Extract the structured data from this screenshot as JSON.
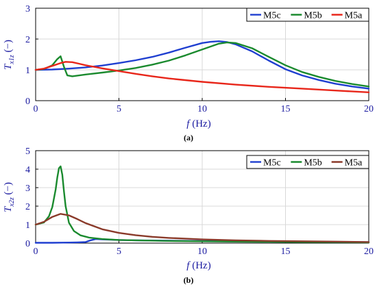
{
  "chart_data": [
    {
      "type": "line",
      "panel_label": "(a)",
      "ylabel_main": "T",
      "ylabel_sub": "x1z",
      "ylabel_unit": "(−)",
      "xlabel_main": "f",
      "xlabel_unit": "(Hz)",
      "xlim": [
        0,
        20
      ],
      "ylim": [
        0,
        3
      ],
      "xticks": [
        0,
        5,
        10,
        15,
        20
      ],
      "yticks": [
        0,
        1,
        2,
        3
      ],
      "grid": true,
      "legend_position": "top-right",
      "series": [
        {
          "name": "M5c",
          "color": "#1f3fd0",
          "x": [
            0,
            1,
            2,
            3,
            4,
            5,
            6,
            7,
            8,
            9,
            10,
            10.5,
            11,
            11.5,
            12,
            13,
            14,
            15,
            16,
            17,
            18,
            19,
            20
          ],
          "y": [
            1.0,
            1.01,
            1.04,
            1.08,
            1.14,
            1.22,
            1.31,
            1.42,
            1.56,
            1.72,
            1.87,
            1.91,
            1.93,
            1.9,
            1.83,
            1.6,
            1.3,
            1.02,
            0.82,
            0.67,
            0.55,
            0.46,
            0.39
          ]
        },
        {
          "name": "M5b",
          "color": "#1a8a2e",
          "x": [
            0,
            0.5,
            1.0,
            1.3,
            1.5,
            1.7,
            1.9,
            2.2,
            3,
            4,
            5,
            6,
            7,
            8,
            9,
            10,
            11,
            11.5,
            12,
            13,
            14,
            15,
            16,
            17,
            18,
            19,
            20
          ],
          "y": [
            1.0,
            1.03,
            1.15,
            1.35,
            1.44,
            1.1,
            0.82,
            0.79,
            0.85,
            0.91,
            0.98,
            1.06,
            1.17,
            1.3,
            1.47,
            1.66,
            1.85,
            1.89,
            1.87,
            1.7,
            1.42,
            1.15,
            0.93,
            0.77,
            0.64,
            0.54,
            0.46
          ]
        },
        {
          "name": "M5a",
          "color": "#e8261a",
          "x": [
            0,
            0.5,
            1.0,
            1.5,
            1.8,
            2.2,
            2.6,
            3,
            4,
            5,
            6,
            7,
            8,
            10,
            12,
            14,
            16,
            18,
            20
          ],
          "y": [
            1.0,
            1.04,
            1.13,
            1.22,
            1.26,
            1.25,
            1.2,
            1.15,
            1.05,
            0.96,
            0.87,
            0.79,
            0.72,
            0.61,
            0.52,
            0.45,
            0.39,
            0.33,
            0.27
          ]
        }
      ]
    },
    {
      "type": "line",
      "panel_label": "(b)",
      "ylabel_main": "T",
      "ylabel_sub": "x2z",
      "ylabel_unit": "(−)",
      "xlabel_main": "f",
      "xlabel_unit": "(Hz)",
      "xlim": [
        0,
        20
      ],
      "ylim": [
        0,
        5
      ],
      "xticks": [
        0,
        5,
        10,
        15,
        20
      ],
      "yticks": [
        0,
        1,
        2,
        3,
        4,
        5
      ],
      "grid": true,
      "legend_position": "top-right",
      "series": [
        {
          "name": "M5c",
          "color": "#1f3fd0",
          "x": [
            0,
            1,
            2,
            2.5,
            3,
            3.3,
            3.6,
            4,
            5,
            6,
            8,
            10,
            12,
            14,
            16,
            18,
            20
          ],
          "y": [
            0.02,
            0.02,
            0.03,
            0.04,
            0.06,
            0.15,
            0.22,
            0.2,
            0.17,
            0.15,
            0.13,
            0.11,
            0.09,
            0.08,
            0.07,
            0.06,
            0.05
          ]
        },
        {
          "name": "M5b",
          "color": "#1a8a2e",
          "x": [
            0,
            0.5,
            0.8,
            1.0,
            1.2,
            1.3,
            1.4,
            1.5,
            1.6,
            1.7,
            1.8,
            2.0,
            2.3,
            2.7,
            3.2,
            4,
            5,
            6,
            8,
            10,
            12,
            14,
            16,
            18,
            20
          ],
          "y": [
            1.0,
            1.12,
            1.45,
            1.95,
            2.9,
            3.55,
            4.05,
            4.15,
            3.7,
            2.8,
            2.0,
            1.1,
            0.65,
            0.42,
            0.3,
            0.22,
            0.17,
            0.15,
            0.12,
            0.1,
            0.08,
            0.07,
            0.06,
            0.05,
            0.04
          ]
        },
        {
          "name": "M5a",
          "color": "#8a3a2a",
          "x": [
            0,
            0.5,
            1.0,
            1.5,
            2.0,
            2.5,
            3,
            4,
            5,
            6,
            7,
            8,
            10,
            12,
            14,
            16,
            18,
            20
          ],
          "y": [
            1.0,
            1.15,
            1.42,
            1.58,
            1.5,
            1.3,
            1.08,
            0.75,
            0.55,
            0.43,
            0.34,
            0.28,
            0.2,
            0.15,
            0.12,
            0.1,
            0.08,
            0.06
          ]
        }
      ]
    }
  ]
}
